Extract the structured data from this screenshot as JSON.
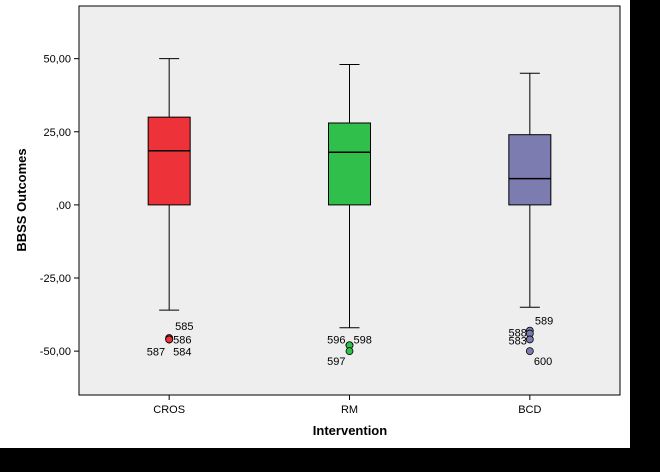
{
  "chart_data": {
    "type": "boxplot",
    "xlabel": "Intervention",
    "ylabel": "BBSS Outcomes",
    "ylim": [
      -65,
      68
    ],
    "y_ticks": [
      50,
      25,
      0,
      -25,
      -50
    ],
    "y_tick_labels": [
      "50,00",
      "25,00",
      ",00",
      "-25,00",
      "-50,00"
    ],
    "grid": false,
    "plot_background": "#eeeeee",
    "categories": [
      "CROS",
      "RM",
      "BCD"
    ],
    "boxes": [
      {
        "category": "CROS",
        "color": "#ee3239",
        "min": -36,
        "q1": 0,
        "median": 18.5,
        "q3": 30,
        "max": 50,
        "outliers": [
          {
            "id": "585",
            "value": -45.5
          },
          {
            "id": "586",
            "value": -46
          },
          {
            "id": "587",
            "value": -46
          },
          {
            "id": "584",
            "value": -46
          }
        ]
      },
      {
        "category": "RM",
        "color": "#2fbf4a",
        "min": -42,
        "q1": 0,
        "median": 18,
        "q3": 28,
        "max": 48,
        "outliers": [
          {
            "id": "596",
            "value": -48
          },
          {
            "id": "598",
            "value": -48
          },
          {
            "id": "597",
            "value": -50
          }
        ]
      },
      {
        "category": "BCD",
        "color": "#7d7cb0",
        "min": -35,
        "q1": 0,
        "median": 9,
        "q3": 24,
        "max": 45,
        "outliers": [
          {
            "id": "589",
            "value": -43
          },
          {
            "id": "588",
            "value": -44
          },
          {
            "id": "583",
            "value": -46
          },
          {
            "id": "600",
            "value": -50
          }
        ]
      }
    ]
  }
}
